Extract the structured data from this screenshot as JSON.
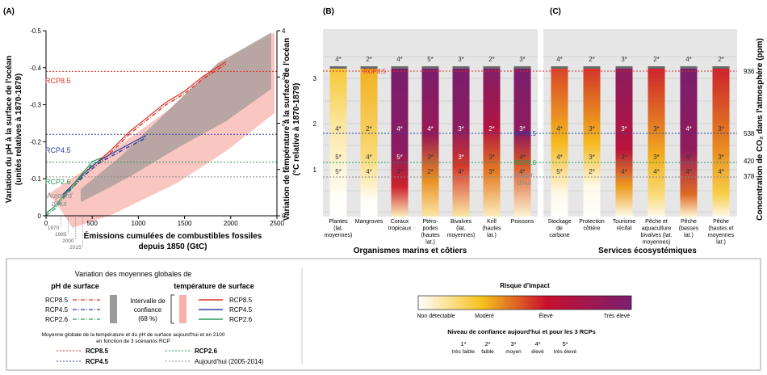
{
  "panel_a": {
    "label": "(A)",
    "left_axis_title_1": "Variation du pH à la surface de l'océan",
    "left_axis_title_2": "(unités relatives à 1870-1879)",
    "right_axis_title_1": "Variation de température à la surface de l'océan",
    "right_axis_title_2": "(°C relative à 1870-1879)",
    "xlabel_1": "Émissions cumulées de combustibles fossiles",
    "xlabel_2": "depuis 1850 (GtC)",
    "year_ticks": [
      "1970",
      "1985",
      "2000",
      "2015"
    ],
    "today_label_1": "Aujourd'",
    "today_label_2": "d'hui"
  },
  "panel_b": {
    "label": "(B)",
    "group_title": "Organismes marins et côtiers"
  },
  "panel_c": {
    "label": "(C)",
    "group_title": "Services écosystémiques",
    "right_axis_title": "Concentration de CO₂ dans l'atmosphère (ppm)"
  },
  "scenario_labels": {
    "rcp85": "RCP8.5",
    "rcp45": "RCP4.5",
    "rcp26": "RCP2.6",
    "today_1": "Aujour",
    "today_2": "d'hui"
  },
  "legend": {
    "title": "Variation des moyennes globales de",
    "ph_header": "pH de surface",
    "temp_header": "température de surface",
    "ci_1": "Intervalle de",
    "ci_2": "confiance",
    "ci_3": "(68 %)",
    "rcp85": "RCP8.5",
    "rcp45": "RCP4.5",
    "rcp26": "RCP2.6",
    "note_1": "Moyenne globale de la température et du pH de surface aujourd'hui et en 2100",
    "note_2": "en fonction de 3 scénarios RCP",
    "today_range": "Aujourd'hui (2005-2014)",
    "risk_title": "Risque d'impact",
    "risk_levels": [
      "Non détectable",
      "Modéré",
      "Élevé",
      "Très élevé"
    ],
    "confidence_title": "Niveau de confiance aujourd'hui et pour les 3 RCPs",
    "confidence_levels": [
      {
        "stars": "1*",
        "label": "très faible"
      },
      {
        "stars": "2*",
        "label": "faible"
      },
      {
        "stars": "3*",
        "label": "moyen"
      },
      {
        "stars": "4*",
        "label": "élevé"
      },
      {
        "stars": "5*",
        "label": "très élevé"
      }
    ]
  },
  "colors": {
    "rcp85": "#e03024",
    "rcp45": "#2b3fa6",
    "rcp26": "#2a9a5a",
    "today": "#8a8a8a",
    "ci_ph": "#9a9a9a",
    "ci_temp": "#f7b0aa",
    "risk_scale": [
      "#ffffff",
      "#f6c21c",
      "#c8102e",
      "#7a1f6e"
    ],
    "panel_bg": "#e6e6e6"
  },
  "chart_data": [
    {
      "type": "line",
      "panel": "A",
      "x_axis": {
        "range": [
          0,
          2500
        ],
        "ticks": [
          0,
          500,
          1000,
          1500,
          2000,
          2500
        ]
      },
      "y_left": {
        "range": [
          0,
          -0.5
        ],
        "ticks": [
          0,
          -0.1,
          -0.2,
          -0.3,
          -0.4,
          -0.5
        ],
        "tick_labels": [
          "0",
          "-0.1",
          "-0.2",
          "-0.3",
          "-0.4",
          "-0.5"
        ]
      },
      "y_right": {
        "range": [
          0,
          4
        ],
        "ticks": [
          0,
          1,
          2,
          3,
          4
        ]
      },
      "series": [
        {
          "name": "RCP8.5",
          "x": [
            180,
            300,
            420,
            560,
            700,
            900,
            1100,
            1300,
            1500,
            1700,
            1950
          ],
          "y": [
            -0.05,
            -0.08,
            -0.11,
            -0.14,
            -0.17,
            -0.22,
            -0.26,
            -0.3,
            -0.33,
            -0.37,
            -0.41
          ]
        },
        {
          "name": "RCP4.5",
          "x": [
            180,
            300,
            420,
            560,
            700,
            850,
            1000,
            1080
          ],
          "y": [
            -0.05,
            -0.08,
            -0.11,
            -0.14,
            -0.16,
            -0.18,
            -0.2,
            -0.21
          ]
        },
        {
          "name": "RCP2.6",
          "x": [
            0,
            100,
            200,
            300,
            400,
            500,
            600
          ],
          "y": [
            0,
            -0.02,
            -0.05,
            -0.08,
            -0.11,
            -0.14,
            -0.15
          ]
        }
      ],
      "reference_lines": {
        "RCP8.5": -0.39,
        "RCP4.5": -0.22,
        "RCP2.6": -0.145,
        "Aujourd'hui": -0.105
      },
      "year_marks": [
        {
          "year": "1970",
          "x": 160
        },
        {
          "year": "1985",
          "x": 240
        },
        {
          "year": "2000",
          "x": 320
        },
        {
          "year": "2015",
          "x": 400
        }
      ]
    },
    {
      "type": "heatmap",
      "panel": "B",
      "y_ticks": [
        1,
        2,
        3
      ],
      "categories": [
        {
          "label": [
            "Plantes",
            "(lat.",
            "moyennes)"
          ],
          "stars": [
            "4*",
            "4*",
            "5*",
            "5*"
          ],
          "stops": [
            [
              0,
              0
            ],
            [
              0.12,
              0.02
            ],
            [
              0.6,
              0.4
            ],
            [
              1,
              0.9
            ]
          ]
        },
        {
          "label": [
            "Mangroves"
          ],
          "stars": [
            "2*",
            "2*",
            "4*",
            "4*"
          ],
          "stops": [
            [
              0,
              0
            ],
            [
              0.1,
              0.02
            ],
            [
              0.4,
              0.6
            ],
            [
              1,
              1.1
            ]
          ]
        },
        {
          "label": [
            "Coraux",
            "tropicaux"
          ],
          "stars": [
            "4*",
            "4*",
            "5*",
            "4*"
          ],
          "stops": [
            [
              0,
              0.3
            ],
            [
              0.2,
              1.9
            ],
            [
              0.45,
              2.8
            ],
            [
              1,
              3.6
            ]
          ]
        },
        {
          "label": [
            "Ptéro-",
            "podes",
            "(hautes",
            "lat.)"
          ],
          "stars": [
            "5*",
            "4*",
            "3*",
            "2*"
          ],
          "stops": [
            [
              0,
              0.4
            ],
            [
              0.25,
              1.3
            ],
            [
              0.55,
              2.6
            ],
            [
              1,
              3.2
            ]
          ]
        },
        {
          "label": [
            "Bivalves",
            "(lat.",
            "moyennes)"
          ],
          "stars": [
            "3*",
            "3*",
            "3*",
            "4*"
          ],
          "stops": [
            [
              0,
              0.4
            ],
            [
              0.35,
              1.8
            ],
            [
              0.6,
              2.8
            ],
            [
              1,
              3.4
            ]
          ]
        },
        {
          "label": [
            "Krill",
            "(hautes",
            "lat.)"
          ],
          "stars": [
            "2*",
            "2*",
            "3*",
            "3*"
          ],
          "stops": [
            [
              0,
              0.3
            ],
            [
              0.3,
              1.4
            ],
            [
              0.6,
              2.3
            ],
            [
              1,
              2.9
            ]
          ]
        },
        {
          "label": [
            "Poissons"
          ],
          "stars": [
            "3*",
            "3*",
            "4*",
            "4*"
          ],
          "stops": [
            [
              0,
              0.2
            ],
            [
              0.35,
              1.6
            ],
            [
              0.55,
              2.7
            ],
            [
              1,
              3.5
            ]
          ]
        }
      ]
    },
    {
      "type": "heatmap",
      "panel": "C",
      "y2_ticks": [
        378,
        420,
        538,
        936
      ],
      "categories": [
        {
          "label": [
            "Stockage",
            "de",
            "carbone"
          ],
          "stars": [
            "4*",
            "4*",
            "4*",
            "5*"
          ],
          "stops": [
            [
              0,
              0
            ],
            [
              0.15,
              0.1
            ],
            [
              0.5,
              1.05
            ],
            [
              1,
              1.7
            ]
          ]
        },
        {
          "label": [
            "Protection",
            "côtière"
          ],
          "stars": [
            "2*",
            "3*",
            "3*",
            "2*"
          ],
          "stops": [
            [
              0,
              0
            ],
            [
              0.2,
              0.1
            ],
            [
              0.5,
              1.05
            ],
            [
              1,
              1.8
            ]
          ]
        },
        {
          "label": [
            "Tourisme",
            "récifal"
          ],
          "stars": [
            "3*",
            "3*",
            "3*",
            "4*"
          ],
          "stops": [
            [
              0,
              0.1
            ],
            [
              0.2,
              1.2
            ],
            [
              0.45,
              2.2
            ],
            [
              1,
              2.8
            ]
          ]
        },
        {
          "label": [
            "Pêche et",
            "aquaculture",
            "bivalves (lat.",
            "moyennes)"
          ],
          "stars": [
            "2*",
            "3*",
            "3*",
            "4*"
          ],
          "stops": [
            [
              0,
              0.1
            ],
            [
              0.15,
              0.6
            ],
            [
              0.4,
              1.1
            ],
            [
              1,
              1.9
            ]
          ]
        },
        {
          "label": [
            "Pêche",
            "(basses",
            "lat.)"
          ],
          "stars": [
            "4*",
            "4*",
            "4*",
            "4*"
          ],
          "stops": [
            [
              0,
              0.2
            ],
            [
              0.15,
              1.5
            ],
            [
              0.45,
              2.7
            ],
            [
              1,
              3.5
            ]
          ]
        },
        {
          "label": [
            "Pêche",
            "(hautes et",
            "moyennes",
            "lat.)"
          ],
          "stars": [
            "2*",
            "3*",
            "3*",
            "4*"
          ],
          "stops": [
            [
              0,
              0.1
            ],
            [
              0.15,
              0.8
            ],
            [
              0.45,
              1.3
            ],
            [
              1,
              1.9
            ]
          ]
        }
      ]
    }
  ]
}
